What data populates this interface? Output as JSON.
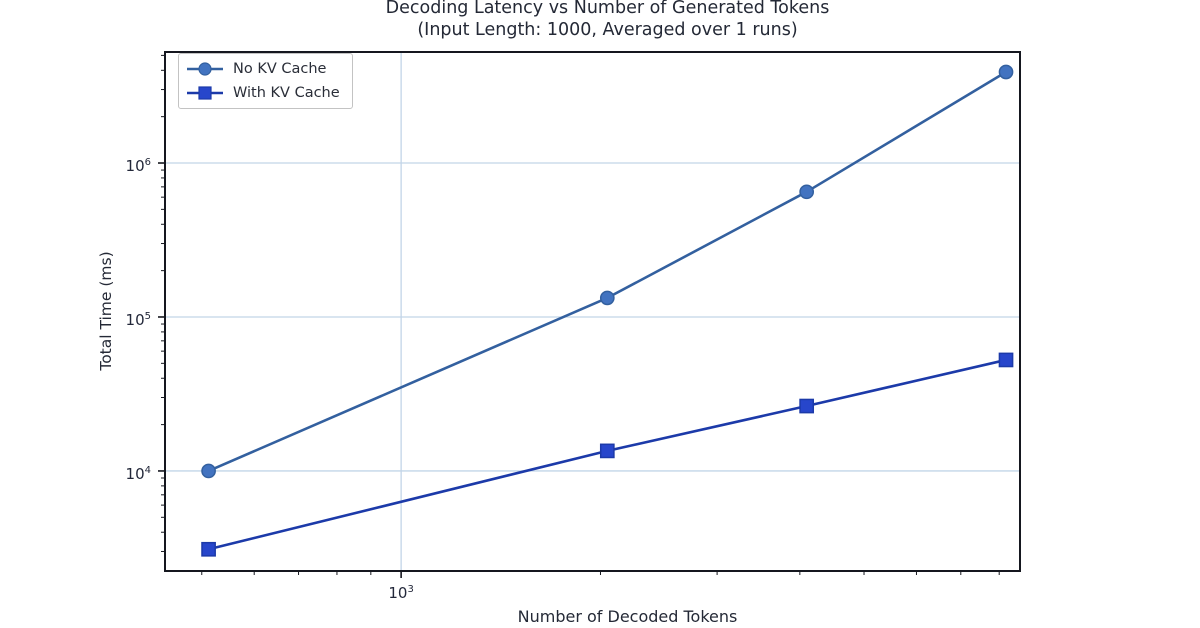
{
  "title": {
    "line1": "Decoding Latency vs Number of Generated Tokens",
    "line2": "(Input Length: 1000, Averaged over 1 runs)"
  },
  "axes": {
    "xlabel": "Number of Decoded Tokens",
    "ylabel": "Total Time (ms)",
    "xticks": [
      {
        "base": "10",
        "exp": "3",
        "value": 1000
      }
    ],
    "yticks": [
      {
        "base": "10",
        "exp": "6",
        "value": 1000000
      },
      {
        "base": "10",
        "exp": "5",
        "value": 100000
      },
      {
        "base": "10",
        "exp": "4",
        "value": 10000
      }
    ]
  },
  "legend": {
    "items": [
      {
        "label": "No KV Cache",
        "marker": "circle"
      },
      {
        "label": "With KV Cache",
        "marker": "square"
      }
    ]
  },
  "colors": {
    "background": "#ffffff",
    "spine": "#15171f",
    "grid": "#c2d5e8",
    "text": "#242936"
  },
  "chart_data": {
    "type": "line",
    "title": "Decoding Latency vs Number of Generated Tokens (Input Length: 1000, Averaged over 1 runs)",
    "xlabel": "Number of Decoded Tokens",
    "ylabel": "Total Time (ms)",
    "xscale": "log",
    "yscale": "log",
    "grid": true,
    "legend_position": "upper left",
    "x": [
      512,
      2048,
      4096,
      8192
    ],
    "series": [
      {
        "name": "No KV Cache",
        "marker": "circle",
        "color": "#33609f",
        "marker_color": "#4273c0",
        "values": [
          10000,
          133000,
          650000,
          3900000
        ]
      },
      {
        "name": "With KV Cache",
        "marker": "square",
        "color": "#1c3aa9",
        "marker_color": "#2746cb",
        "values": [
          3100,
          13500,
          26400,
          52600
        ]
      }
    ],
    "xlim": [
      440,
      8600
    ],
    "ylim": [
      2240,
      5260000
    ],
    "x_tick_labels": [
      "10^3"
    ],
    "y_tick_labels": [
      "10^4",
      "10^5",
      "10^6"
    ]
  }
}
